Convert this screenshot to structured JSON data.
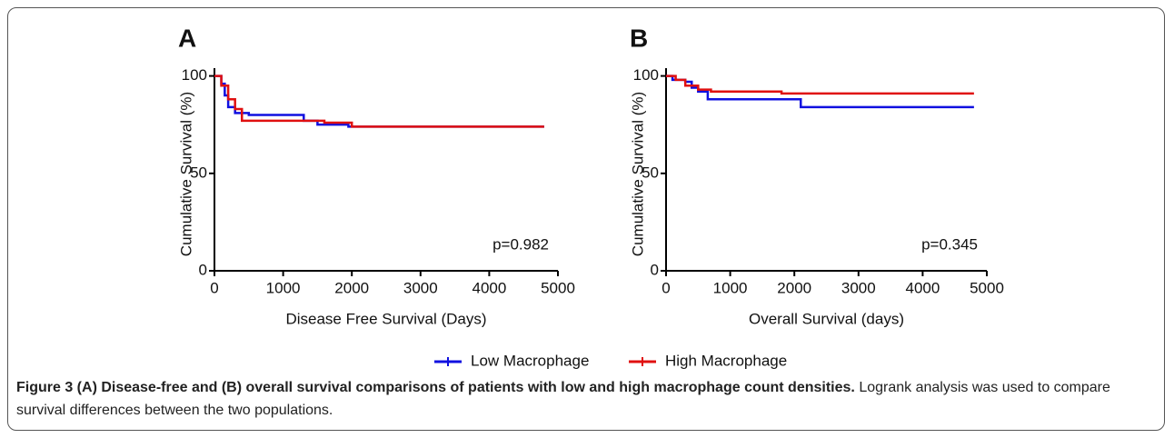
{
  "chart_data": [
    {
      "type": "line",
      "panel_label": "A",
      "x_label": "Disease Free Survival (Days)",
      "y_label": "Cumulative Survival (%)",
      "annotation": "p=0.982",
      "xlim": [
        0,
        5000
      ],
      "xticks": [
        0,
        1000,
        2000,
        3000,
        4000,
        5000
      ],
      "ylim": [
        0,
        104
      ],
      "yticks": [
        0,
        50,
        100
      ],
      "series": [
        {
          "color": "#1010e0",
          "x": [
            0,
            100,
            150,
            200,
            300,
            500,
            1300,
            1500,
            1950,
            4800
          ],
          "values": [
            100,
            96,
            90,
            84,
            81,
            80,
            77,
            75,
            74,
            74
          ]
        },
        {
          "color": "#e01010",
          "x": [
            0,
            100,
            200,
            300,
            400,
            1600,
            2000,
            4800
          ],
          "values": [
            100,
            95,
            88,
            83,
            77,
            76,
            74,
            74
          ]
        }
      ]
    },
    {
      "type": "line",
      "panel_label": "B",
      "x_label": "Overall Survival (days)",
      "y_label": "Cumulative Survival (%)",
      "annotation": "p=0.345",
      "xlim": [
        0,
        5000
      ],
      "xticks": [
        0,
        1000,
        2000,
        3000,
        4000,
        5000
      ],
      "ylim": [
        0,
        104
      ],
      "yticks": [
        0,
        50,
        100
      ],
      "series": [
        {
          "color": "#1010e0",
          "x": [
            0,
            100,
            300,
            400,
            500,
            650,
            2100,
            4800
          ],
          "values": [
            100,
            98,
            97,
            94,
            92,
            88,
            84,
            84
          ]
        },
        {
          "color": "#e01010",
          "x": [
            0,
            150,
            300,
            500,
            700,
            1800,
            4800
          ],
          "values": [
            100,
            98,
            95,
            93,
            92,
            91,
            91
          ]
        }
      ]
    }
  ],
  "legend": [
    {
      "name": "Low Macrophage",
      "color": "#1010e0"
    },
    {
      "name": "High Macrophage",
      "color": "#e01010"
    }
  ],
  "caption": {
    "bold": "Figure 3 (A) Disease-free and (B) overall survival comparisons of patients with low and high macrophage count densities.",
    "text": "Logrank analysis was used to compare survival differences between the two populations."
  }
}
